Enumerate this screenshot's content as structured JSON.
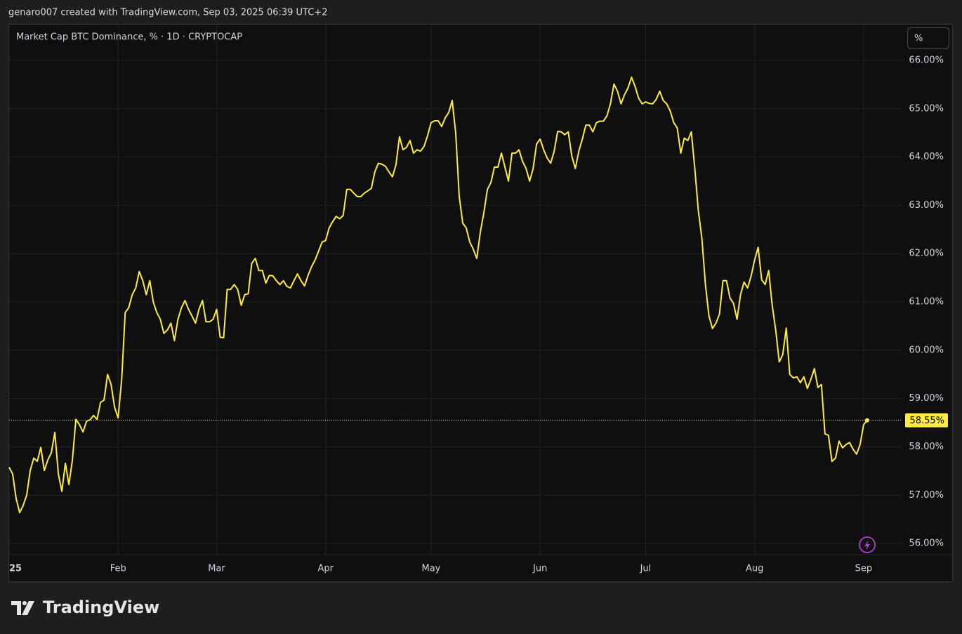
{
  "header": "genaro007 created with TradingView.com, Sep 03, 2025 06:39 UTC+2",
  "logo": "TradingView",
  "scale_button": "%",
  "chart_data": {
    "type": "line",
    "title": "Market Cap BTC Dominance, % · 1D · CRYPTOCAP",
    "color": "#ffeb3b",
    "last_label": "58.55%",
    "grid": true,
    "xlim": [
      0,
      254
    ],
    "xticks": [
      {
        "value": 0,
        "label": "25"
      },
      {
        "value": 31,
        "label": "Feb"
      },
      {
        "value": 59,
        "label": "Mar"
      },
      {
        "value": 90,
        "label": "Apr"
      },
      {
        "value": 120,
        "label": "May"
      },
      {
        "value": 151,
        "label": "Jun"
      },
      {
        "value": 181,
        "label": "Jul"
      },
      {
        "value": 212,
        "label": "Aug"
      },
      {
        "value": 243,
        "label": "Sep"
      }
    ],
    "ylim": [
      55.77,
      66.74
    ],
    "yticks": [
      {
        "value": 56,
        "label": "56.00%"
      },
      {
        "value": 57,
        "label": "57.00%"
      },
      {
        "value": 58,
        "label": "58.00%"
      },
      {
        "value": 59,
        "label": "59.00%"
      },
      {
        "value": 60,
        "label": "60.00%"
      },
      {
        "value": 61,
        "label": "61.00%"
      },
      {
        "value": 62,
        "label": "62.00%"
      },
      {
        "value": 63,
        "label": "63.00%"
      },
      {
        "value": 64,
        "label": "64.00%"
      },
      {
        "value": 65,
        "label": "65.00%"
      },
      {
        "value": 66,
        "label": "66.00%"
      }
    ],
    "values": [
      57.58,
      57.44,
      56.93,
      56.64,
      56.79,
      57.0,
      57.51,
      57.77,
      57.7,
      57.99,
      57.51,
      57.73,
      57.88,
      58.3,
      57.44,
      57.08,
      57.66,
      57.22,
      57.73,
      58.57,
      58.46,
      58.31,
      58.53,
      58.56,
      58.65,
      58.57,
      58.92,
      58.97,
      59.5,
      59.29,
      58.82,
      58.6,
      59.4,
      60.78,
      60.88,
      61.15,
      61.29,
      61.63,
      61.44,
      61.15,
      61.44,
      61.0,
      60.78,
      60.64,
      60.35,
      60.42,
      60.56,
      60.2,
      60.64,
      60.88,
      61.03,
      60.85,
      60.71,
      60.56,
      60.85,
      61.03,
      60.59,
      60.59,
      60.64,
      60.85,
      60.27,
      60.26,
      61.26,
      61.26,
      61.36,
      61.26,
      60.93,
      61.15,
      61.17,
      61.8,
      61.9,
      61.65,
      61.65,
      61.39,
      61.55,
      61.54,
      61.44,
      61.36,
      61.44,
      61.32,
      61.29,
      61.44,
      61.58,
      61.44,
      61.33,
      61.55,
      61.73,
      61.87,
      62.05,
      62.24,
      62.27,
      62.53,
      62.66,
      62.77,
      62.72,
      62.79,
      63.33,
      63.33,
      63.25,
      63.18,
      63.18,
      63.25,
      63.3,
      63.35,
      63.69,
      63.87,
      63.85,
      63.81,
      63.69,
      63.59,
      63.84,
      64.42,
      64.15,
      64.2,
      64.34,
      64.08,
      64.15,
      64.12,
      64.22,
      64.44,
      64.71,
      64.75,
      64.75,
      64.63,
      64.81,
      64.92,
      65.17,
      64.49,
      63.18,
      62.63,
      62.53,
      62.24,
      62.09,
      61.9,
      62.45,
      62.85,
      63.33,
      63.47,
      63.79,
      63.79,
      64.08,
      63.79,
      63.5,
      64.08,
      64.08,
      64.15,
      63.91,
      63.76,
      63.5,
      63.76,
      64.27,
      64.37,
      64.15,
      63.98,
      63.87,
      64.12,
      64.53,
      64.52,
      64.46,
      64.52,
      64.02,
      63.76,
      64.12,
      64.37,
      64.66,
      64.66,
      64.52,
      64.71,
      64.74,
      64.74,
      64.85,
      65.1,
      65.51,
      65.36,
      65.1,
      65.29,
      65.43,
      65.65,
      65.46,
      65.22,
      65.1,
      65.14,
      65.11,
      65.1,
      65.19,
      65.36,
      65.17,
      65.1,
      64.95,
      64.71,
      64.6,
      64.08,
      64.39,
      64.34,
      64.52,
      63.76,
      62.89,
      62.31,
      61.36,
      60.71,
      60.45,
      60.56,
      60.75,
      61.44,
      61.44,
      61.08,
      60.97,
      60.64,
      61.15,
      61.41,
      61.29,
      61.54,
      61.87,
      62.13,
      61.46,
      61.36,
      61.65,
      60.93,
      60.42,
      59.76,
      59.91,
      60.46,
      59.5,
      59.43,
      59.45,
      59.33,
      59.45,
      59.21,
      59.4,
      59.62,
      59.23,
      59.29,
      58.27,
      58.24,
      57.7,
      57.77,
      58.12,
      57.98,
      58.05,
      58.09,
      57.95,
      57.85,
      58.05,
      58.46,
      58.55
    ]
  }
}
